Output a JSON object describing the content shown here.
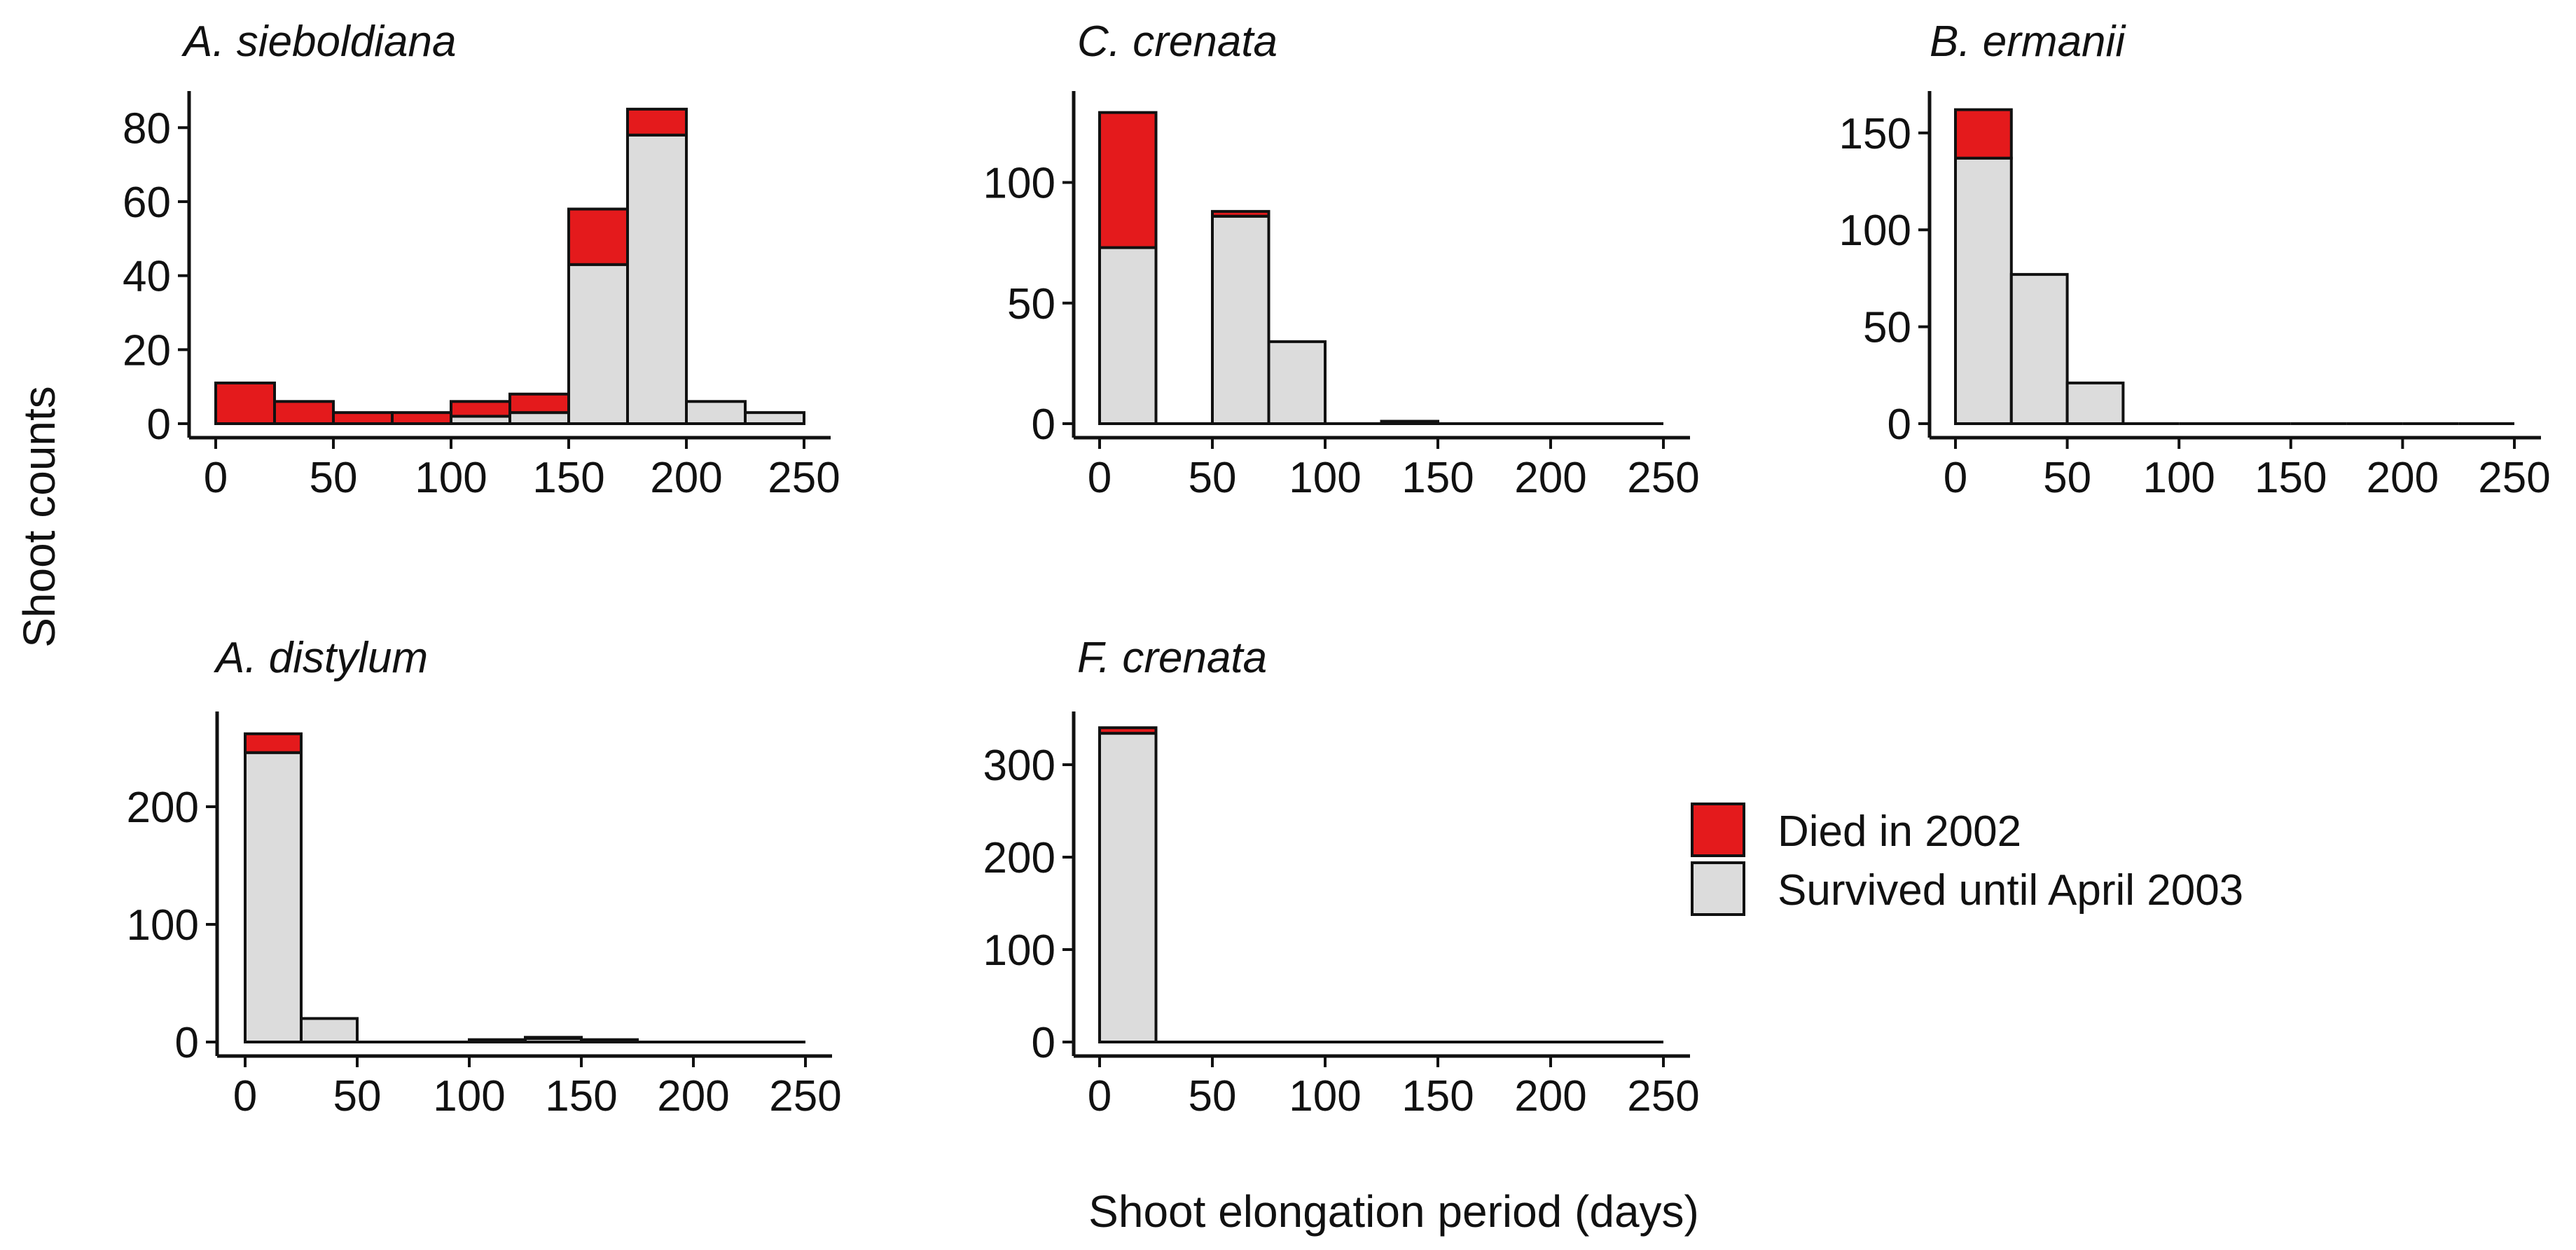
{
  "figure": {
    "ylabel": "Shoot counts",
    "xlabel": "Shoot elongation period (days)",
    "colors": {
      "died": "#E41A1C",
      "survived": "#DCDCDC",
      "outline": "#111111"
    }
  },
  "legend": {
    "items": [
      {
        "label": "Died in 2002",
        "color": "#E41A1C"
      },
      {
        "label": "Survived until April 2003",
        "color": "#DCDCDC"
      }
    ]
  },
  "chart_data": [
    {
      "type": "bar",
      "stacked": true,
      "title": "A. sieboldiana",
      "bin_width": 25,
      "bin_starts": [
        0,
        25,
        50,
        75,
        100,
        125,
        150,
        175,
        200,
        225
      ],
      "xlim": [
        0,
        250
      ],
      "xticks": [
        "0",
        "50",
        "100",
        "150",
        "200",
        "250"
      ],
      "ylim": [
        0,
        88
      ],
      "yticks": [
        "0",
        "20",
        "40",
        "60",
        "80"
      ],
      "series": [
        {
          "name": "Survived until April 2003",
          "values": [
            0,
            0,
            0,
            0,
            2,
            3,
            43,
            78,
            6,
            3
          ]
        },
        {
          "name": "Died in 2002",
          "values": [
            11,
            6,
            3,
            3,
            4,
            5,
            15,
            7,
            0,
            0
          ]
        }
      ]
    },
    {
      "type": "bar",
      "stacked": true,
      "title": "C. crenata",
      "bin_width": 25,
      "bin_starts": [
        0,
        25,
        50,
        75,
        100,
        125,
        150,
        175,
        200,
        225
      ],
      "xlim": [
        0,
        250
      ],
      "xticks": [
        "0",
        "50",
        "100",
        "150",
        "200",
        "250"
      ],
      "ylim": [
        0,
        135
      ],
      "yticks": [
        "0",
        "50",
        "100"
      ],
      "series": [
        {
          "name": "Survived until April 2003",
          "values": [
            73,
            0,
            86,
            34,
            0,
            1,
            0,
            0,
            0,
            0
          ]
        },
        {
          "name": "Died in 2002",
          "values": [
            56,
            0,
            2,
            0,
            0,
            0,
            0,
            0,
            0,
            0
          ]
        }
      ]
    },
    {
      "type": "bar",
      "stacked": true,
      "title": "B. ermanii",
      "bin_width": 25,
      "bin_starts": [
        0,
        25,
        50,
        75,
        100,
        125,
        150,
        175,
        200,
        225
      ],
      "xlim": [
        0,
        250
      ],
      "xticks": [
        "0",
        "50",
        "100",
        "150",
        "200",
        "250"
      ],
      "ylim": [
        0,
        168
      ],
      "yticks": [
        "0",
        "50",
        "100",
        "150"
      ],
      "series": [
        {
          "name": "Survived until April 2003",
          "values": [
            137,
            77,
            21,
            0,
            0,
            0,
            0,
            0,
            0,
            0
          ]
        },
        {
          "name": "Died in 2002",
          "values": [
            25,
            0,
            0,
            0,
            0,
            0,
            0,
            0,
            0,
            0
          ]
        }
      ]
    },
    {
      "type": "bar",
      "stacked": true,
      "title": "A. distylum",
      "bin_width": 25,
      "bin_starts": [
        0,
        25,
        50,
        75,
        100,
        125,
        150,
        175,
        200,
        225
      ],
      "xlim": [
        0,
        250
      ],
      "xticks": [
        "0",
        "50",
        "100",
        "150",
        "200",
        "250"
      ],
      "ylim": [
        0,
        275
      ],
      "yticks": [
        "0",
        "100",
        "200"
      ],
      "series": [
        {
          "name": "Survived until April 2003",
          "values": [
            246,
            20,
            0,
            0,
            2,
            3,
            2,
            0,
            0,
            0
          ]
        },
        {
          "name": "Died in 2002",
          "values": [
            16,
            0,
            0,
            0,
            0,
            1,
            0,
            0,
            0,
            0
          ]
        }
      ]
    },
    {
      "type": "bar",
      "stacked": true,
      "title": "F. crenata",
      "bin_width": 25,
      "bin_starts": [
        0,
        25,
        50,
        75,
        100,
        125,
        150,
        175,
        200,
        225
      ],
      "xlim": [
        0,
        250
      ],
      "xticks": [
        "0",
        "50",
        "100",
        "150",
        "200",
        "250"
      ],
      "ylim": [
        0,
        350
      ],
      "yticks": [
        "0",
        "100",
        "200",
        "300"
      ],
      "series": [
        {
          "name": "Survived until April 2003",
          "values": [
            334,
            0,
            0,
            0,
            0,
            0,
            0,
            0,
            0,
            0
          ]
        },
        {
          "name": "Died in 2002",
          "values": [
            6,
            0,
            0,
            0,
            0,
            0,
            0,
            0,
            0,
            0
          ]
        }
      ]
    }
  ]
}
